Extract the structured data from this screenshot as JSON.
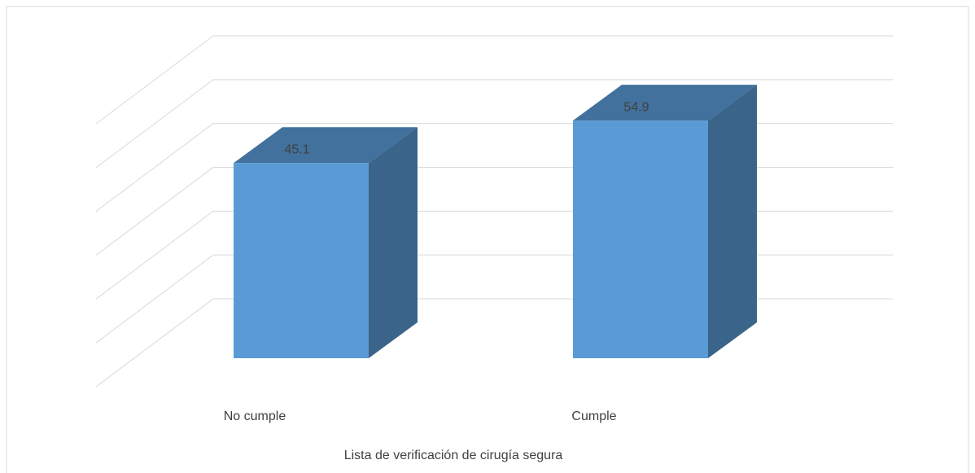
{
  "chart_data": {
    "type": "bar3d",
    "categories": [
      "No cumple",
      "Cumple"
    ],
    "values": [
      45.1,
      54.9
    ],
    "color": "#5b9bd5",
    "side_color": "#3a6489",
    "top_color": "#41719c",
    "x_label": "Lista de verificación de cirugía segura",
    "ylim": [
      0,
      60
    ],
    "yticks": [
      0,
      10,
      20,
      30,
      40,
      50,
      60
    ],
    "grid": true
  }
}
